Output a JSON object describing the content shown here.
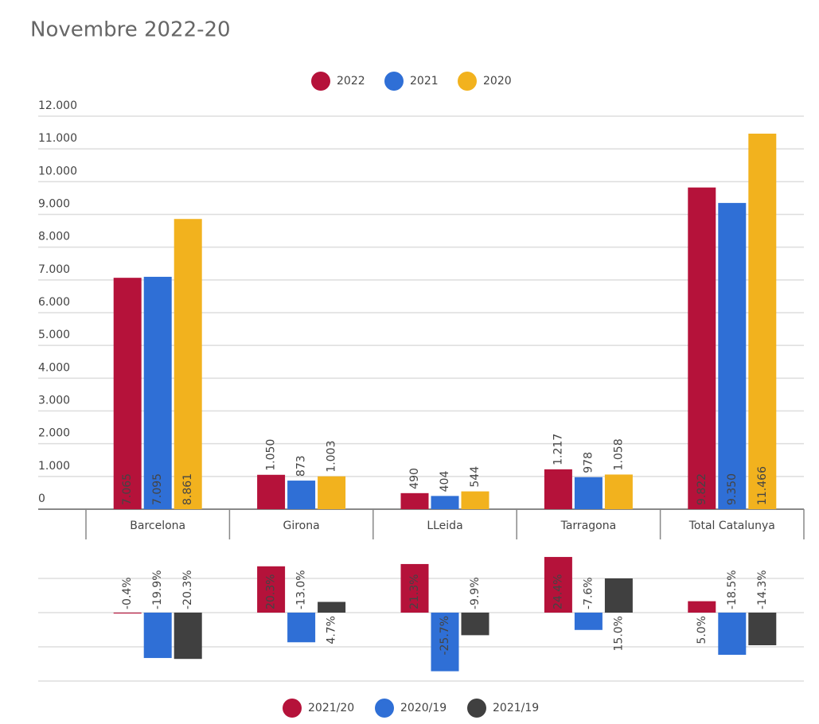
{
  "chart_data": [
    {
      "type": "bar",
      "title": "Novembre 2022-20",
      "categories": [
        "Barcelona",
        "Girona",
        "LLeida",
        "Tarragona",
        "Total Catalunya"
      ],
      "series": [
        {
          "name": "2022",
          "color": "#b5123a",
          "values": [
            7065,
            1050,
            490,
            1217,
            9822
          ],
          "value_labels": [
            "7.065",
            "1.050",
            "490",
            "1.217",
            "9.822"
          ]
        },
        {
          "name": "2021",
          "color": "#2f6fd6",
          "values": [
            7095,
            873,
            404,
            978,
            9350
          ],
          "value_labels": [
            "7.095",
            "873",
            "404",
            "978",
            "9.350"
          ]
        },
        {
          "name": "2020",
          "color": "#f2b21e",
          "values": [
            8861,
            1003,
            544,
            1058,
            11466
          ],
          "value_labels": [
            "8.861",
            "1.003",
            "544",
            "1.058",
            "11.466"
          ]
        }
      ],
      "ylim": [
        0,
        12000
      ],
      "yticks": [
        0,
        {
          "value": 1000,
          "label": "1.000"
        },
        {
          "value": 2000,
          "label": "2.000"
        },
        {
          "value": 3000,
          "label": "3.000"
        },
        {
          "value": 4000,
          "label": "4.000"
        },
        {
          "value": 5000,
          "label": "5.000"
        },
        {
          "value": 6000,
          "label": "6.000"
        },
        {
          "value": 7000,
          "label": "7.000"
        },
        {
          "value": 8000,
          "label": "8.000"
        },
        {
          "value": 9000,
          "label": "9.000"
        },
        {
          "value": 10000,
          "label": "10.000"
        },
        {
          "value": 11000,
          "label": "11.000"
        },
        {
          "value": 12000,
          "label": "12.000"
        }
      ],
      "grid": true
    },
    {
      "type": "bar",
      "categories": [
        null,
        null,
        null,
        null,
        null
      ],
      "series": [
        {
          "name": "2021/20",
          "color": "#b5123a",
          "values": [
            -0.4,
            20.3,
            21.3,
            24.4,
            5.0
          ],
          "value_labels": [
            "-0.4%",
            "20.3%",
            "21.3%",
            "24.4%",
            "5.0%"
          ]
        },
        {
          "name": "2020/19",
          "color": "#2f6fd6",
          "values": [
            -19.9,
            -13.0,
            -25.7,
            -7.6,
            -18.5
          ],
          "value_labels": [
            "-19.9%",
            "-13.0%",
            "-25.7%",
            "-7.6%",
            "-18.5%"
          ]
        },
        {
          "name": "2021/19",
          "color": "#404040",
          "values": [
            -20.3,
            4.7,
            -9.9,
            15.0,
            -14.3
          ],
          "value_labels": [
            "-20.3%",
            "4.7%",
            "-9.9%",
            "15.0%",
            "-14.3%"
          ]
        }
      ],
      "ylim": [
        -30,
        30
      ],
      "yticks": [
        -30,
        -15,
        0,
        15
      ],
      "grid": true
    }
  ]
}
